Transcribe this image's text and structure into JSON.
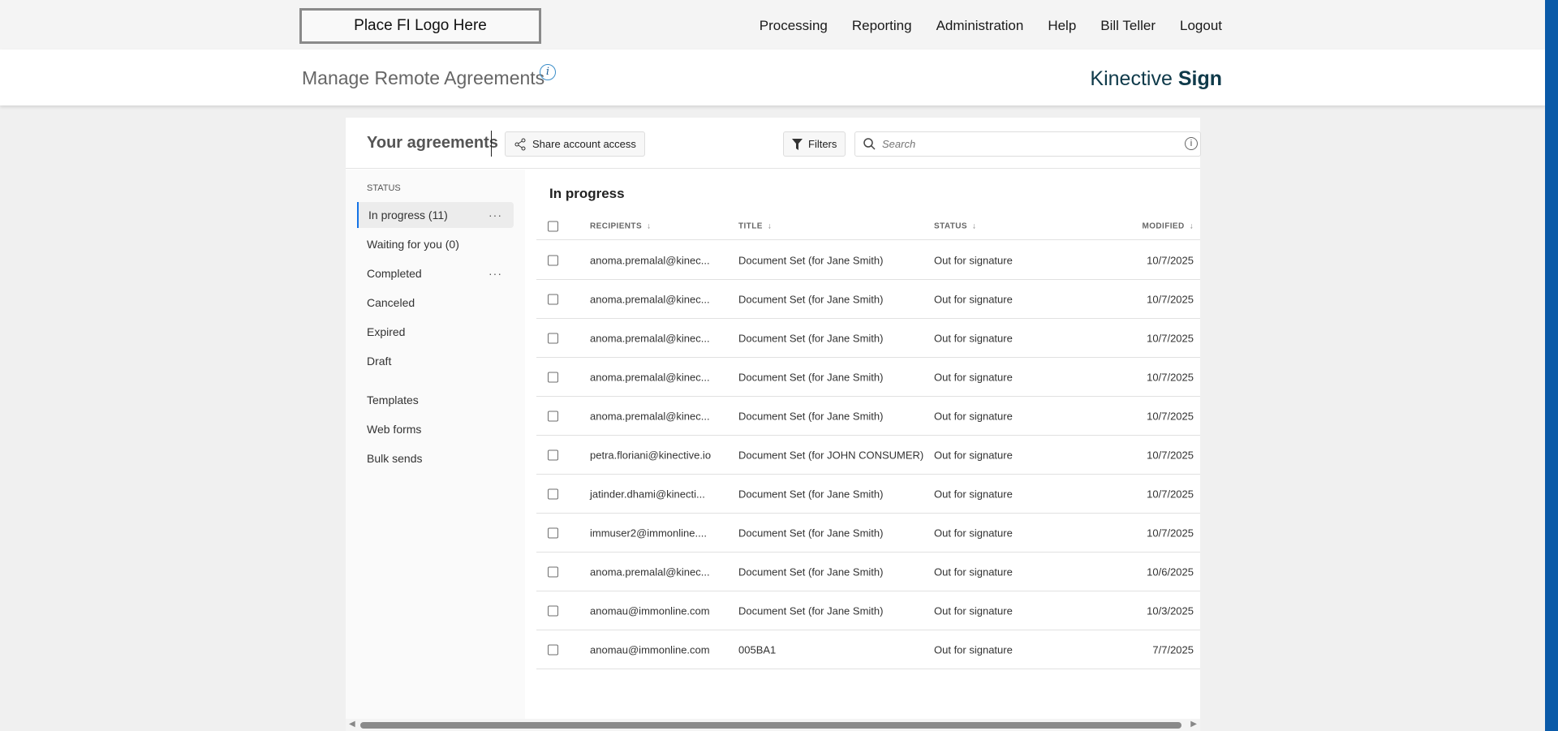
{
  "header": {
    "logo": "Place FI Logo Here",
    "nav": [
      "Processing",
      "Reporting",
      "Administration",
      "Help",
      "Bill Teller",
      "Logout"
    ]
  },
  "subheader": {
    "title": "Manage Remote Agreements",
    "info_icon": "i",
    "brand_light": "Kinective",
    "brand_bold": "Sign"
  },
  "toolbar": {
    "title": "Your agreements",
    "share_label": "Share account access",
    "filters_label": "Filters",
    "search_placeholder": "Search",
    "info_icon": "i"
  },
  "sidebar": {
    "heading": "STATUS",
    "items": [
      {
        "label": "In progress (11)",
        "active": true,
        "more": "···"
      },
      {
        "label": "Waiting for you (0)"
      },
      {
        "label": "Completed",
        "more": "···"
      },
      {
        "label": "Canceled"
      },
      {
        "label": "Expired"
      },
      {
        "label": "Draft"
      },
      {
        "label": "Templates"
      },
      {
        "label": "Web forms"
      },
      {
        "label": "Bulk sends"
      }
    ]
  },
  "table": {
    "title": "In progress",
    "columns": [
      "RECIPIENTS",
      "TITLE",
      "STATUS",
      "MODIFIED"
    ],
    "sort_icon": "↓",
    "rows": [
      [
        "anoma.premalal@kinec...",
        "Document Set (for Jane Smith)",
        "Out for signature",
        "10/7/2025"
      ],
      [
        "anoma.premalal@kinec...",
        "Document Set (for Jane Smith)",
        "Out for signature",
        "10/7/2025"
      ],
      [
        "anoma.premalal@kinec...",
        "Document Set (for Jane Smith)",
        "Out for signature",
        "10/7/2025"
      ],
      [
        "anoma.premalal@kinec...",
        "Document Set (for Jane Smith)",
        "Out for signature",
        "10/7/2025"
      ],
      [
        "anoma.premalal@kinec...",
        "Document Set (for Jane Smith)",
        "Out for signature",
        "10/7/2025"
      ],
      [
        "petra.floriani@kinective.io",
        "Document Set (for JOHN CONSUMER)",
        "Out for signature",
        "10/7/2025"
      ],
      [
        "jatinder.dhami@kinecti...",
        "Document Set (for Jane Smith)",
        "Out for signature",
        "10/7/2025"
      ],
      [
        "immuser2@immonline....",
        "Document Set (for Jane Smith)",
        "Out for signature",
        "10/7/2025"
      ],
      [
        "anoma.premalal@kinec...",
        "Document Set (for Jane Smith)",
        "Out for signature",
        "10/6/2025"
      ],
      [
        "anomau@immonline.com",
        "Document Set (for Jane Smith)",
        "Out for signature",
        "10/3/2025"
      ],
      [
        "anomau@immonline.com",
        "005BA1",
        "Out for signature",
        "7/7/2025"
      ]
    ]
  }
}
